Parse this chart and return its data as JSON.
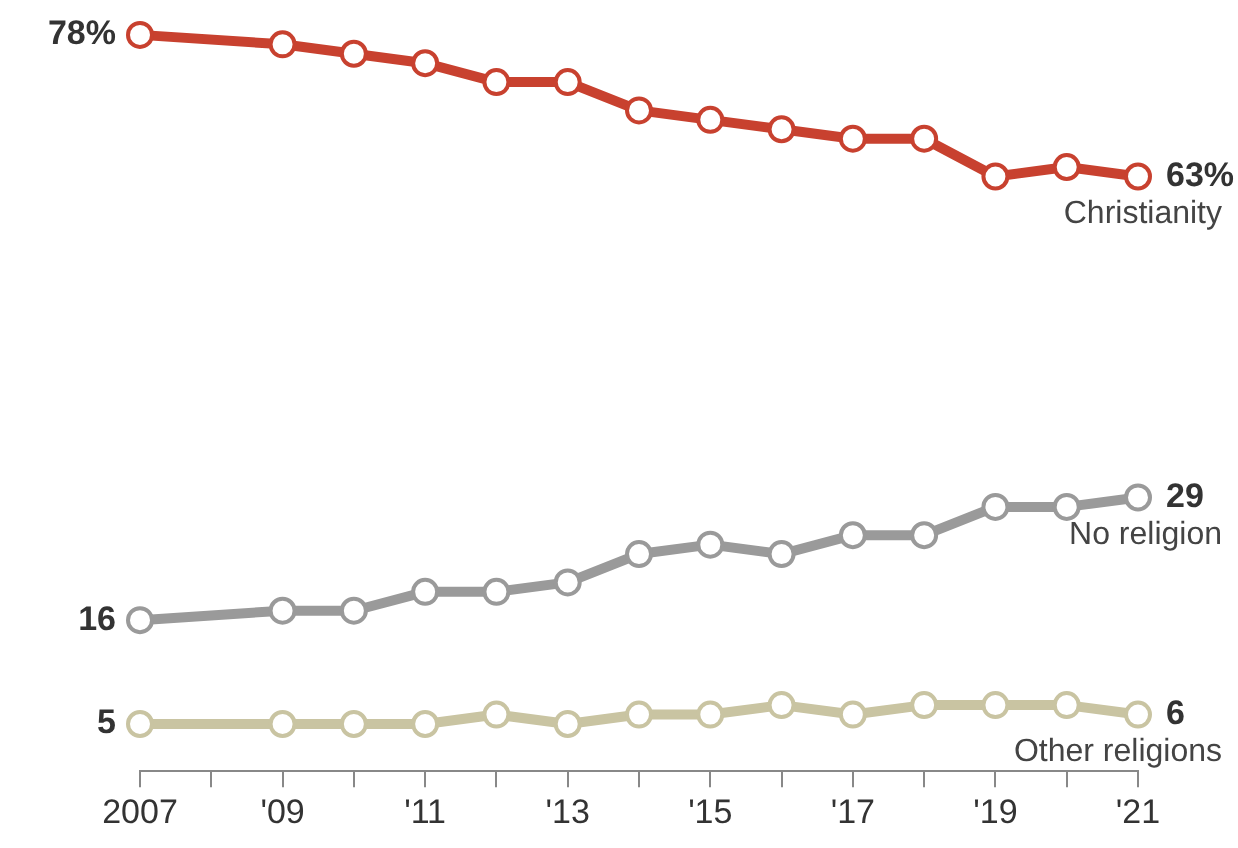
{
  "chart_data": {
    "type": "line",
    "x": [
      2007,
      2009,
      2010,
      2011,
      2012,
      2013,
      2014,
      2015,
      2016,
      2017,
      2018,
      2019,
      2020,
      2021
    ],
    "xlim": [
      2007,
      2021
    ],
    "xticks": [
      {
        "value": 2007,
        "label": "2007"
      },
      {
        "value": 2008,
        "label": null
      },
      {
        "value": 2009,
        "label": "'09"
      },
      {
        "value": 2010,
        "label": null
      },
      {
        "value": 2011,
        "label": "'11"
      },
      {
        "value": 2012,
        "label": null
      },
      {
        "value": 2013,
        "label": "'13"
      },
      {
        "value": 2014,
        "label": null
      },
      {
        "value": 2015,
        "label": "'15"
      },
      {
        "value": 2016,
        "label": null
      },
      {
        "value": 2017,
        "label": "'17"
      },
      {
        "value": 2018,
        "label": null
      },
      {
        "value": 2019,
        "label": "'19"
      },
      {
        "value": 2020,
        "label": null
      },
      {
        "value": 2021,
        "label": "'21"
      }
    ],
    "tick_labels": "x",
    "grid": false,
    "marker": "circle",
    "line_style": "solid",
    "series": [
      {
        "name": "Christianity",
        "color": "#c8412f",
        "values": [
          78,
          77,
          76,
          75,
          73,
          73,
          70,
          69,
          68,
          67,
          67,
          63,
          64,
          63
        ],
        "value_labels": [
          "78%",
          null,
          null,
          null,
          null,
          null,
          null,
          null,
          null,
          null,
          null,
          null,
          null,
          "63%"
        ]
      },
      {
        "name": "No religion",
        "color": "#9a9a9a",
        "values": [
          16,
          17,
          17,
          19,
          19,
          20,
          23,
          24,
          23,
          25,
          25,
          28,
          28,
          29
        ],
        "value_labels": [
          "16",
          null,
          null,
          null,
          null,
          null,
          null,
          null,
          null,
          null,
          null,
          null,
          null,
          "29"
        ]
      },
      {
        "name": "Other religions",
        "color": "#c9c4a2",
        "values": [
          5,
          5,
          5,
          5,
          6,
          5,
          6,
          6,
          7,
          6,
          7,
          7,
          7,
          6
        ],
        "value_labels": [
          "5",
          null,
          null,
          null,
          null,
          null,
          null,
          null,
          null,
          null,
          null,
          null,
          null,
          "6"
        ]
      }
    ]
  }
}
